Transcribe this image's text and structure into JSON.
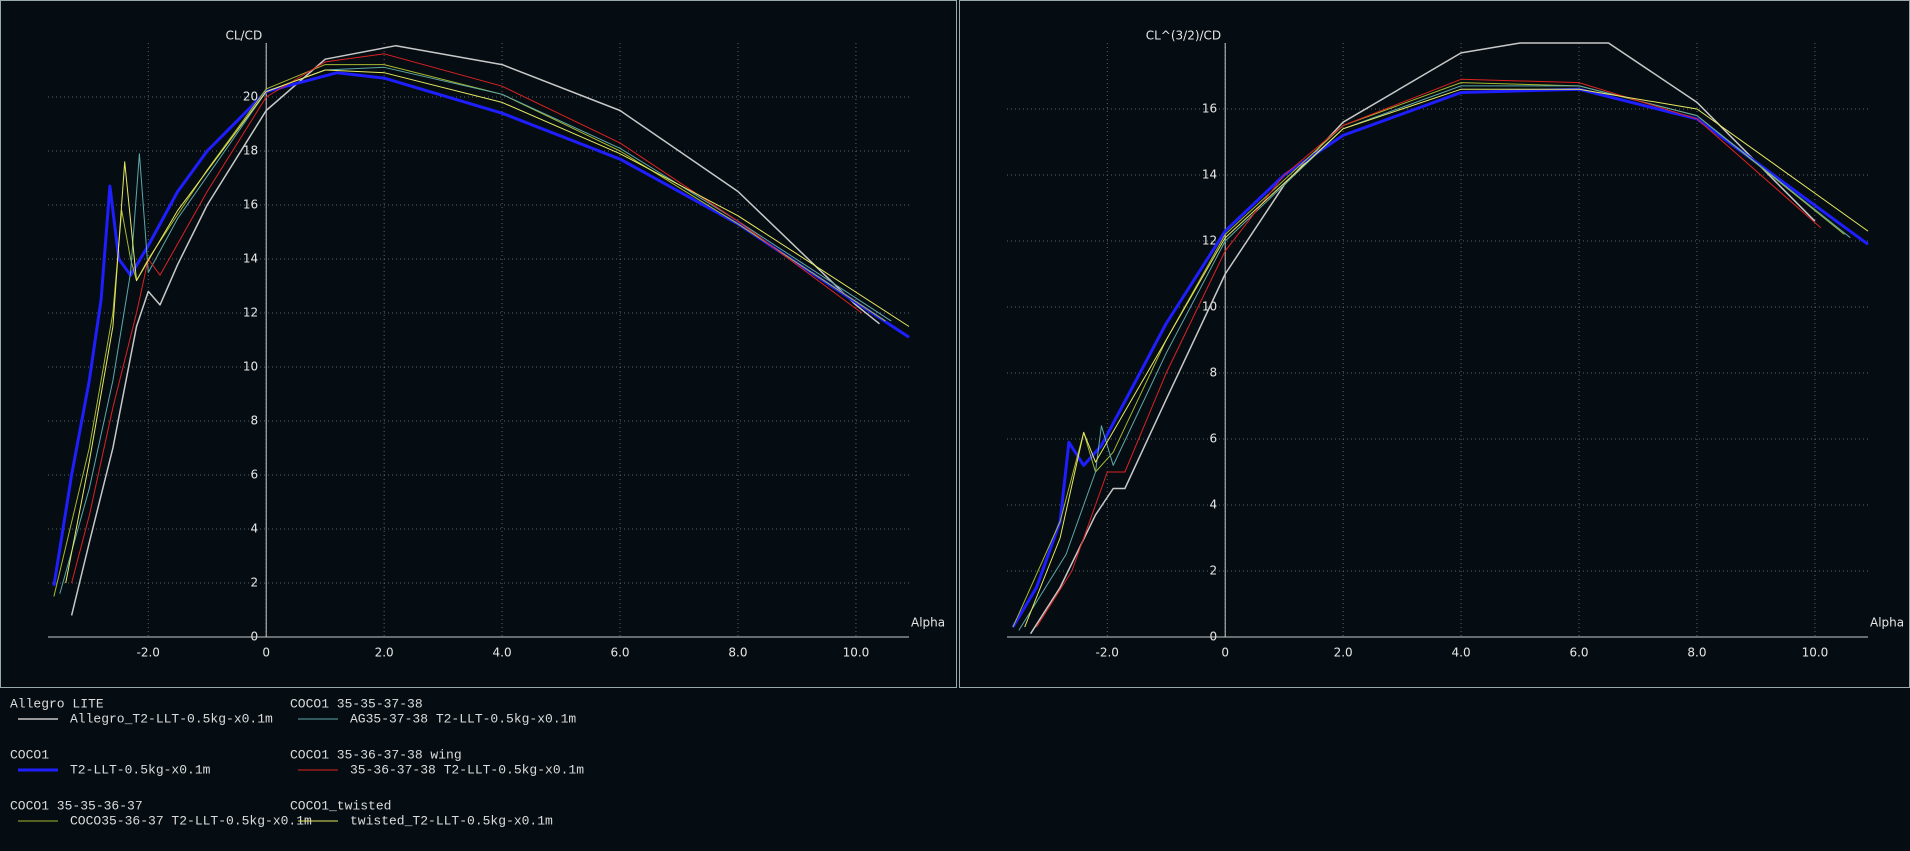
{
  "legend": {
    "entries": [
      {
        "name": "Allegro LITE",
        "label": "Allegro_T2-LLT-0.5kg-x0.1m",
        "color": "#c8c8c8",
        "width": 1.5
      },
      {
        "name": "COCO1",
        "label": "T2-LLT-0.5kg-x0.1m",
        "color": "#1e1eff",
        "width": 3
      },
      {
        "name": "COCO1 35-35-36-37",
        "label": "COCO35-36-37 T2-LLT-0.5kg-x0.1m",
        "color": "#a8b830",
        "width": 1
      },
      {
        "name": "COCO1 35-35-37-38",
        "label": "AG35-37-38 T2-LLT-0.5kg-x0.1m",
        "color": "#5fa8a8",
        "width": 1
      },
      {
        "name": "COCO1 35-36-37-38 wing",
        "label": "35-36-37-38 T2-LLT-0.5kg-x0.1m",
        "color": "#dd2222",
        "width": 1
      },
      {
        "name": "COCO1_twisted",
        "label": "twisted_T2-LLT-0.5kg-x0.1m",
        "color": "#e8e860",
        "width": 1
      }
    ]
  },
  "chart_data": [
    {
      "type": "line",
      "y_label": "CL/CD",
      "x_label": "Alpha",
      "grid": true,
      "xlim": [
        -3.7,
        10.9
      ],
      "ylim": [
        0,
        22
      ],
      "xticks": [
        {
          "value": -2,
          "label": "-2.0"
        },
        0,
        {
          "value": 2,
          "label": "2.0"
        },
        {
          "value": 4,
          "label": "4.0"
        },
        {
          "value": 6,
          "label": "6.0"
        },
        {
          "value": 8,
          "label": "8.0"
        },
        {
          "value": 10,
          "label": "10.0"
        }
      ],
      "yticks": [
        0,
        2,
        4,
        6,
        8,
        10,
        12,
        14,
        16,
        18,
        20
      ],
      "series": [
        {
          "x": [
            -3.3,
            -3.0,
            -2.6,
            -2.2,
            -2.0,
            -1.8,
            -1.5,
            -1.0,
            0,
            1,
            2.2,
            4,
            6,
            8,
            10,
            10.4
          ],
          "values": [
            0.8,
            3.5,
            7,
            11.5,
            12.8,
            12.3,
            13.8,
            16,
            19.5,
            21.4,
            21.9,
            21.2,
            19.5,
            16.5,
            12.3,
            11.6
          ]
        },
        {
          "x": [
            -3.6,
            -3.3,
            -3.0,
            -2.8,
            -2.65,
            -2.5,
            -2.3,
            -2.0,
            -1.5,
            -1.0,
            0,
            1.2,
            2,
            4,
            6,
            8,
            10,
            10.9
          ],
          "values": [
            1.9,
            6,
            9.5,
            12.5,
            16.7,
            14,
            13.4,
            14.5,
            16.5,
            18,
            20.2,
            20.9,
            20.7,
            19.4,
            17.7,
            15.3,
            12.4,
            11.1
          ]
        },
        {
          "x": [
            -3.6,
            -3.0,
            -2.6,
            -2.45,
            -2.3,
            -2.2,
            -2.0,
            -1.0,
            0,
            1,
            2,
            4,
            6,
            8,
            10.5
          ],
          "values": [
            1.5,
            7,
            12,
            15.8,
            14,
            13.2,
            14,
            17.3,
            20.3,
            21.2,
            21.2,
            20.1,
            18.0,
            15.3,
            11.7
          ]
        },
        {
          "x": [
            -3.5,
            -3.0,
            -2.6,
            -2.3,
            -2.15,
            -2.0,
            -1.5,
            0,
            1,
            2,
            4,
            6,
            8,
            10.6
          ],
          "values": [
            1.6,
            5.5,
            9.5,
            13.5,
            17.9,
            13.5,
            15.5,
            20.2,
            21.0,
            21.1,
            20.1,
            18.1,
            15.4,
            11.7
          ]
        },
        {
          "x": [
            -3.3,
            -3.0,
            -2.6,
            -2.2,
            -2.0,
            -1.8,
            -1.0,
            0,
            1,
            2,
            4,
            6,
            8,
            10.1
          ],
          "values": [
            2,
            4.5,
            8.5,
            12,
            14.0,
            13.4,
            16.5,
            20,
            21.3,
            21.6,
            20.4,
            18.3,
            15.4,
            12.0
          ]
        },
        {
          "x": [
            -3.4,
            -3.0,
            -2.6,
            -2.4,
            -2.2,
            -1.5,
            0,
            1,
            2,
            4,
            6,
            8,
            10.9
          ],
          "values": [
            2,
            6.5,
            11.5,
            17.6,
            13.2,
            15.8,
            20.2,
            21.0,
            20.9,
            19.8,
            17.9,
            15.6,
            11.5
          ]
        }
      ]
    },
    {
      "type": "line",
      "y_label": "CL^(3/2)/CD",
      "x_label": "Alpha",
      "grid": true,
      "xlim": [
        -3.7,
        10.9
      ],
      "ylim": [
        0,
        18
      ],
      "xticks": [
        {
          "value": -2,
          "label": "-2.0"
        },
        0,
        {
          "value": 2,
          "label": "2.0"
        },
        {
          "value": 4,
          "label": "4.0"
        },
        {
          "value": 6,
          "label": "6.0"
        },
        {
          "value": 8,
          "label": "8.0"
        },
        {
          "value": 10,
          "label": "10.0"
        }
      ],
      "yticks": [
        0,
        2,
        4,
        6,
        8,
        10,
        12,
        14,
        16
      ],
      "series": [
        {
          "x": [
            -3.3,
            -2.8,
            -2.2,
            -1.9,
            -1.7,
            -1,
            0,
            1,
            2,
            4,
            5,
            6.5,
            8,
            10
          ],
          "values": [
            0.1,
            1.5,
            3.7,
            4.5,
            4.5,
            7.2,
            11,
            13.7,
            15.6,
            17.7,
            18,
            18,
            16.2,
            12.6
          ]
        },
        {
          "x": [
            -3.6,
            -3.2,
            -2.8,
            -2.65,
            -2.4,
            -2.1,
            -1,
            0,
            1,
            2,
            4,
            6,
            8,
            10.9
          ],
          "values": [
            0.3,
            1.5,
            3.5,
            5.9,
            5.2,
            5.8,
            9.5,
            12.3,
            14.0,
            15.2,
            16.5,
            16.6,
            15.7,
            11.9
          ]
        },
        {
          "x": [
            -3.6,
            -2.8,
            -2.4,
            -2.2,
            -1.9,
            -1,
            0,
            2,
            4,
            6,
            8,
            10.5
          ],
          "values": [
            0.3,
            3.5,
            6.2,
            5.0,
            5.6,
            9,
            12.2,
            15.5,
            16.8,
            16.7,
            15.8,
            12.2
          ]
        },
        {
          "x": [
            -3.5,
            -2.7,
            -2.2,
            -2.1,
            -1.9,
            -1,
            0,
            2,
            4,
            6,
            8,
            10.6
          ],
          "values": [
            0.2,
            2.5,
            5.0,
            6.4,
            5.2,
            8.6,
            12,
            15.4,
            16.7,
            16.7,
            15.8,
            12.1
          ]
        },
        {
          "x": [
            -3.2,
            -2.6,
            -2.2,
            -2.0,
            -1.7,
            -1,
            0,
            1,
            2,
            4,
            6,
            8,
            10.1
          ],
          "values": [
            0.3,
            2,
            4,
            5.0,
            5.0,
            8,
            11.7,
            14,
            15.5,
            16.9,
            16.8,
            15.7,
            12.4
          ]
        },
        {
          "x": [
            -3.4,
            -2.8,
            -2.4,
            -2.2,
            -1,
            0,
            2,
            4,
            6,
            8,
            10.9
          ],
          "values": [
            0.3,
            3.0,
            6.2,
            5.3,
            9,
            12.1,
            15.4,
            16.6,
            16.6,
            16,
            12.3
          ]
        }
      ]
    }
  ]
}
